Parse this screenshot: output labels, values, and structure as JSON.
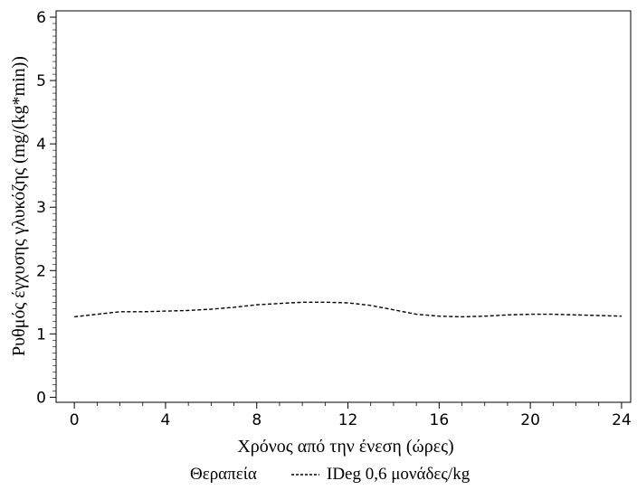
{
  "chart_data": {
    "type": "line",
    "title": "",
    "xlabel": "Χρόνος από την ένεση (ώρες)",
    "ylabel": "Ρυθμός έγχυσης γλυκόζης (mg/(kg*min))",
    "xlim": [
      -0.8,
      24.4
    ],
    "ylim": [
      -0.08,
      6.1
    ],
    "xticks": [
      0,
      4,
      8,
      12,
      16,
      20,
      24
    ],
    "yticks": [
      0,
      1,
      2,
      3,
      4,
      5,
      6
    ],
    "grid": false,
    "legend": {
      "title": "Θεραπεία",
      "position": "bottom"
    },
    "series": [
      {
        "name": "IDeg 0,6 μονάδες/kg",
        "style": "dashed",
        "color": "#000000",
        "x": [
          0,
          1,
          2,
          3,
          4,
          5,
          6,
          7,
          8,
          9,
          10,
          11,
          12,
          13,
          14,
          15,
          16,
          17,
          18,
          19,
          20,
          21,
          22,
          23,
          24
        ],
        "y": [
          1.27,
          1.31,
          1.35,
          1.35,
          1.36,
          1.37,
          1.39,
          1.42,
          1.46,
          1.48,
          1.5,
          1.5,
          1.49,
          1.45,
          1.38,
          1.31,
          1.28,
          1.27,
          1.28,
          1.3,
          1.31,
          1.31,
          1.3,
          1.29,
          1.28
        ]
      }
    ]
  }
}
